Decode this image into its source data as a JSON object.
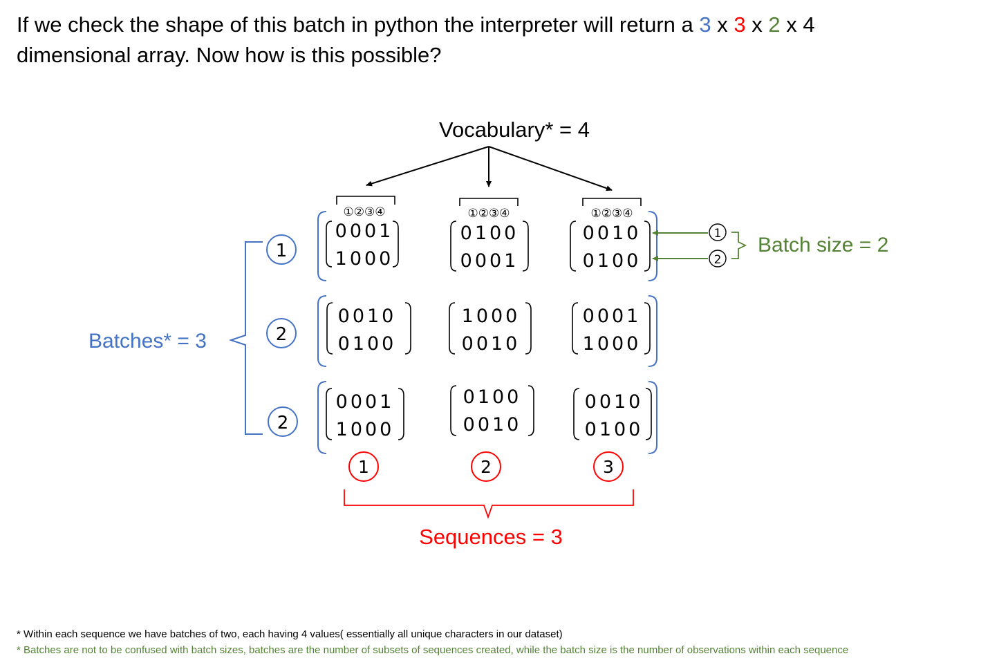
{
  "heading": {
    "part1": "If we check the shape of this batch in python the interpreter will return a",
    "d1": "3",
    "x1": "x",
    "d2": "3",
    "x2": "x",
    "d3": "2",
    "x3": "x 4",
    "line2": "dimensional array. Now how is this possible?"
  },
  "labels": {
    "vocabulary": "Vocabulary* = 4",
    "batches": "Batches* = 3",
    "batch_size": "Batch size = 2",
    "sequences": "Sequences = 3"
  },
  "vocab_index_marks": [
    "①",
    "②",
    "③",
    "④"
  ],
  "batch_markers": [
    "1",
    "2",
    "2"
  ],
  "sequence_markers": [
    "1",
    "2",
    "3"
  ],
  "batch_size_markers": [
    "1",
    "2"
  ],
  "matrices": [
    [
      [
        "0001",
        "1000"
      ],
      [
        "0100",
        "0001"
      ],
      [
        "0010",
        "0100"
      ]
    ],
    [
      [
        "0010",
        "0100"
      ],
      [
        "1000",
        "0010"
      ],
      [
        "0001",
        "1000"
      ]
    ],
    [
      [
        "0001",
        "1000"
      ],
      [
        "0100",
        "0010"
      ],
      [
        "0010",
        "0100"
      ]
    ]
  ],
  "footnotes": [
    "* Within each sequence we have batches of two, each having 4 values( essentially all unique characters in our dataset)",
    "* Batches are not to be confused with batch sizes, batches are the number of subsets of sequences created, while the batch size is the number of observations within  each sequence"
  ],
  "colors": {
    "blue": "#4472c4",
    "red": "#ff0000",
    "green": "#548235",
    "black": "#000000"
  }
}
